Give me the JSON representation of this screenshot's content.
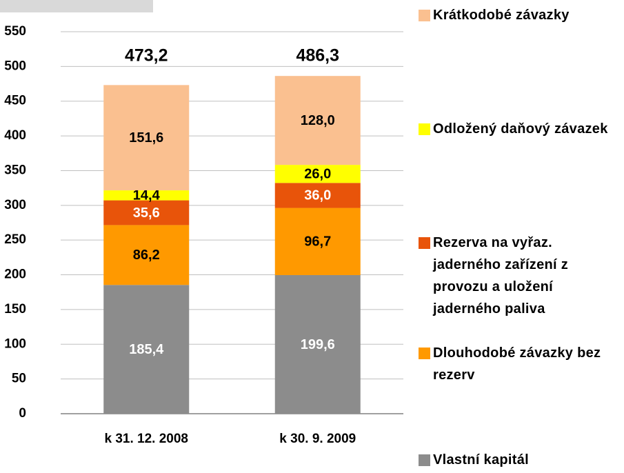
{
  "chart_data": {
    "type": "stacked_bar",
    "categories": [
      "k 31. 12. 2008",
      "k 30. 9. 2009"
    ],
    "series": [
      {
        "name": "Vlastní kapitál",
        "color": "#8c8c8c",
        "label_color": "#ffffff",
        "values": [
          185.4,
          199.6
        ],
        "value_labels": [
          "185,4",
          "199,6"
        ]
      },
      {
        "name": "Dlouhodobé závazky bez rezerv",
        "color": "#ff9900",
        "label_color": "#000000",
        "values": [
          86.2,
          96.7
        ],
        "value_labels": [
          "86,2",
          "96,7"
        ]
      },
      {
        "name": "Rezerva na vyřaz. jaderného zařízení z provozu a uložení jaderného paliva",
        "color": "#e8540a",
        "label_color": "#ffffff",
        "values": [
          35.6,
          36.0
        ],
        "value_labels": [
          "35,6",
          "36,0"
        ]
      },
      {
        "name": "Odložený daňový závazek",
        "color": "#ffff00",
        "label_color": "#000000",
        "values": [
          14.4,
          26.0
        ],
        "value_labels": [
          "14,4",
          "26,0"
        ]
      },
      {
        "name": "Krátkodobé závazky",
        "color": "#fac090",
        "label_color": "#000000",
        "values": [
          151.6,
          128.0
        ],
        "value_labels": [
          "151,6",
          "128,0"
        ]
      }
    ],
    "totals": [
      473.2,
      486.3
    ],
    "total_labels": [
      "473,2",
      "486,3"
    ],
    "ylim": [
      0,
      550
    ],
    "yticks": [
      0,
      50,
      100,
      150,
      200,
      250,
      300,
      350,
      400,
      450,
      500,
      550
    ],
    "grid": true
  }
}
